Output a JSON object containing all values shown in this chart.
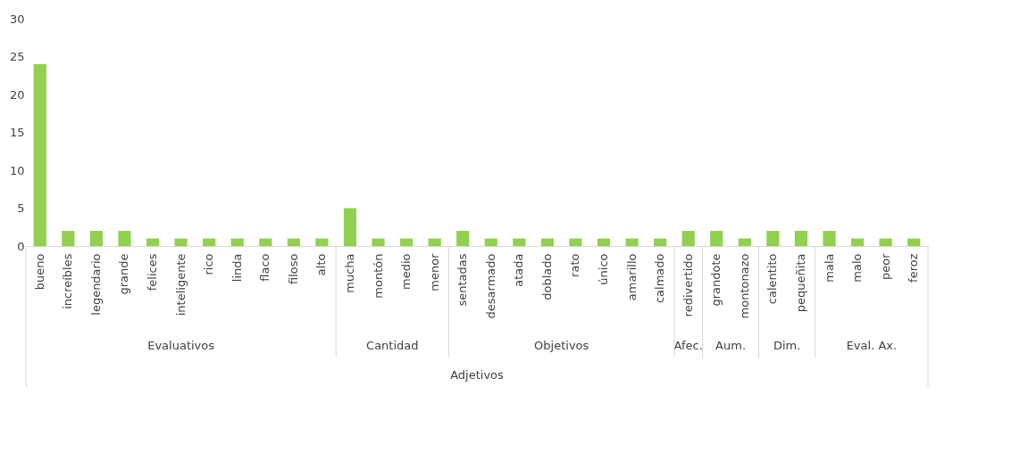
{
  "chart_data": {
    "type": "bar",
    "xlabel": "Adjetivos",
    "categories": [
      "bueno",
      "increíbles",
      "legendario",
      "grande",
      "felices",
      "inteligente",
      "rico",
      "linda",
      "flaco",
      "filoso",
      "alto",
      "mucha",
      "montón",
      "medio",
      "menor",
      "sentadas",
      "desarmado",
      "atada",
      "doblado",
      "rato",
      "único",
      "amarillo",
      "calmado",
      "redivertido",
      "grandote",
      "montonazo",
      "calentito",
      "pequeñita",
      "mala",
      "malo",
      "peor",
      "feroz"
    ],
    "values": [
      24,
      2,
      2,
      2,
      1,
      1,
      1,
      1,
      1,
      1,
      1,
      5,
      1,
      1,
      1,
      2,
      1,
      1,
      1,
      1,
      1,
      1,
      1,
      2,
      2,
      1,
      2,
      2,
      2,
      1,
      1,
      1
    ],
    "color": "#92d050",
    "ylim": [
      0,
      30
    ],
    "yticks": [
      0,
      5,
      10,
      15,
      20,
      25,
      30
    ],
    "grid": false,
    "annotations": [
      "Evaluativos",
      "Cantidad",
      "Objetivos",
      "Afec.",
      "Aum.",
      "Dim.",
      "Eval. Ax."
    ]
  }
}
